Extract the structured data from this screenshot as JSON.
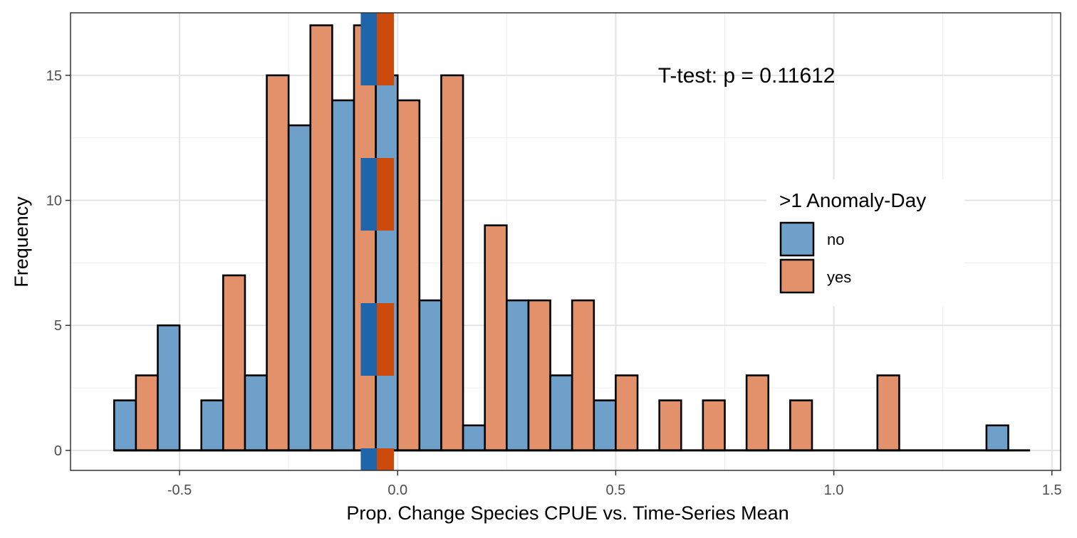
{
  "chart_data": {
    "type": "bar",
    "subtype": "histogram",
    "xlabel": "Prop. Change Species CPUE vs. Time-Series Mean",
    "ylabel": "Frequency",
    "xlim": [
      -0.75,
      1.52
    ],
    "ylim": [
      -0.8,
      17.5
    ],
    "x_ticks": [
      -0.5,
      0.0,
      0.5,
      1.0,
      1.5
    ],
    "x_tick_labels": [
      "-0.5",
      "0.0",
      "0.5",
      "1.0",
      "1.5"
    ],
    "y_ticks": [
      0,
      5,
      10,
      15
    ],
    "y_tick_labels": [
      "0",
      "5",
      "10",
      "15"
    ],
    "grid": true,
    "bin_width": 0.1,
    "bin_centers": [
      -0.6,
      -0.5,
      -0.4,
      -0.3,
      -0.2,
      -0.1,
      0.0,
      0.1,
      0.2,
      0.3,
      0.4,
      0.5,
      0.6,
      0.7,
      0.8,
      0.9,
      1.0,
      1.1,
      1.2,
      1.3,
      1.4
    ],
    "series": [
      {
        "name": "no",
        "color": "#6fa0c9",
        "values": [
          2,
          5,
          2,
          3,
          13,
          14,
          15,
          6,
          1,
          6,
          3,
          2,
          0,
          0,
          0,
          0,
          0,
          0,
          0,
          0,
          1
        ]
      },
      {
        "name": "yes",
        "color": "#e3916a",
        "values": [
          3,
          0,
          7,
          15,
          17,
          17,
          14,
          15,
          9,
          6,
          6,
          3,
          2,
          2,
          3,
          2,
          0,
          3,
          0,
          0,
          0
        ]
      }
    ],
    "mean_lines": [
      {
        "group": "no",
        "x": -0.065,
        "color": "#1f65aa"
      },
      {
        "group": "yes",
        "x": -0.028,
        "color": "#cc4a0c"
      }
    ],
    "annotation": "T-test: p = 0.11612",
    "annotation_position": {
      "x": 0.8,
      "y": 15
    },
    "legend": {
      "title": ">1 Anomaly-Day",
      "placement": "right",
      "entries": [
        "no",
        "yes"
      ]
    }
  }
}
